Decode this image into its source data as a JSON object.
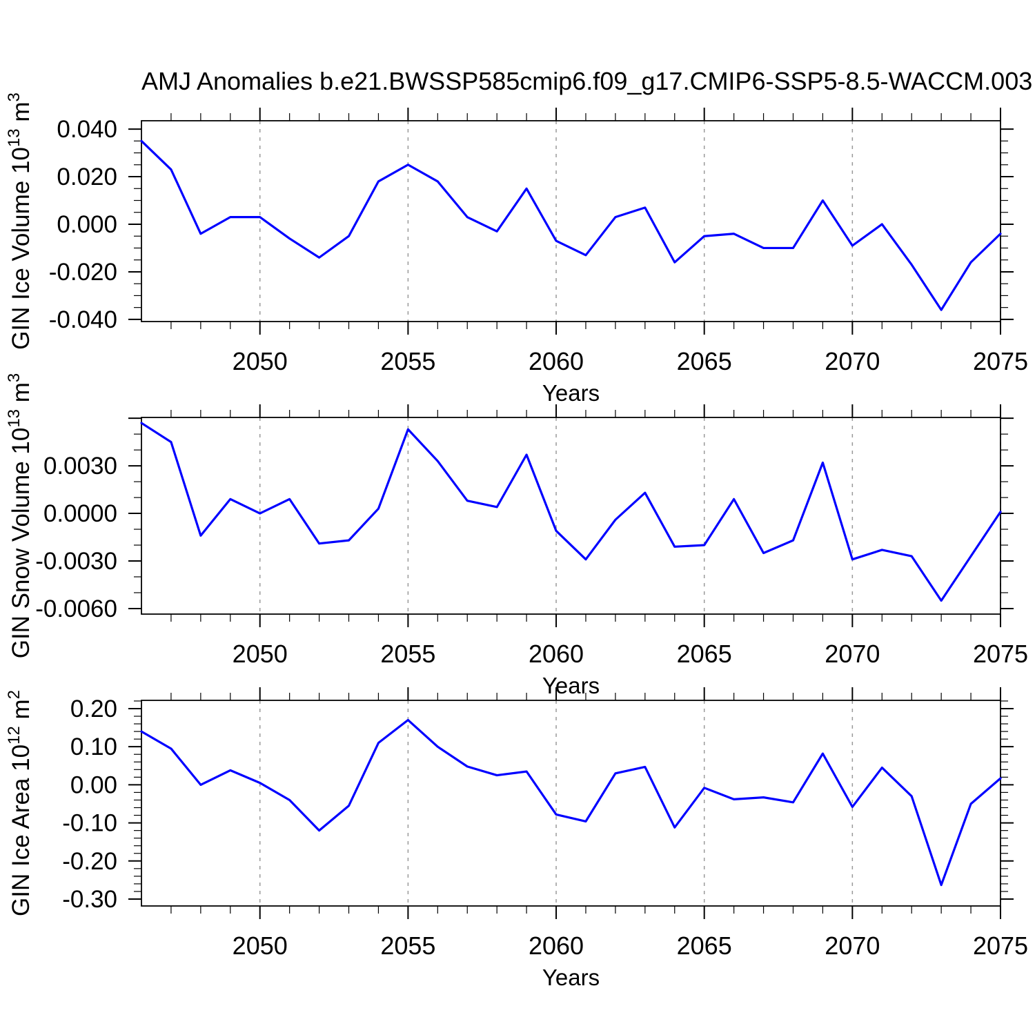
{
  "title": "AMJ Anomalies b.e21.BWSSP585cmip6.f09_g17.CMIP6-SSP5-8.5-WACCM.003",
  "line_color": "#0000ff",
  "grid_color": "#999999",
  "chart_data": [
    {
      "type": "line",
      "series_name": "GIN Ice Volume anomaly",
      "ylabel": "GIN Ice Volume 10^13 m^3",
      "ylabel_segments": [
        {
          "t": "GIN Ice Volume 10"
        },
        {
          "t": "13",
          "sup": true
        },
        {
          "t": " m"
        },
        {
          "t": "3",
          "sup": true
        }
      ],
      "xlabel": "Years",
      "x": [
        2046,
        2047,
        2048,
        2049,
        2050,
        2051,
        2052,
        2053,
        2054,
        2055,
        2056,
        2057,
        2058,
        2059,
        2060,
        2061,
        2062,
        2063,
        2064,
        2065,
        2066,
        2067,
        2068,
        2069,
        2070,
        2071,
        2072,
        2073,
        2074,
        2075
      ],
      "values": [
        0.035,
        0.023,
        -0.004,
        0.003,
        0.003,
        -0.006,
        -0.014,
        -0.005,
        0.018,
        0.025,
        0.018,
        0.003,
        -0.003,
        0.015,
        -0.007,
        -0.013,
        0.003,
        0.007,
        -0.016,
        -0.005,
        -0.004,
        -0.01,
        -0.01,
        0.01,
        -0.009,
        0.0,
        -0.017,
        -0.036,
        -0.016,
        -0.004
      ],
      "xlim": [
        2046,
        2075
      ],
      "ylim": [
        -0.0409,
        0.0435
      ],
      "xticks": {
        "values": [
          2050,
          2055,
          2060,
          2065,
          2070,
          2075
        ],
        "labels": [
          "2050",
          "2055",
          "2060",
          "2065",
          "2070",
          "2075"
        ]
      },
      "yticks": {
        "values": [
          0.04,
          0.02,
          0.0,
          -0.02,
          -0.04
        ],
        "labels": [
          "0.040",
          "0.020",
          "0.000",
          "-0.020",
          "-0.040"
        ]
      },
      "x_minor_step": 1,
      "y_minor_step": 0.005,
      "grid": "vertical-dashed-at-major-xticks",
      "line_color": "#0000ff"
    },
    {
      "type": "line",
      "series_name": "GIN Snow Volume anomaly",
      "ylabel": "GIN Snow Volume 10^13 m^3",
      "ylabel_segments": [
        {
          "t": "GIN Snow Volume 10"
        },
        {
          "t": "13",
          "sup": true
        },
        {
          "t": " m"
        },
        {
          "t": "3",
          "sup": true
        }
      ],
      "xlabel": "Years",
      "x": [
        2046,
        2047,
        2048,
        2049,
        2050,
        2051,
        2052,
        2053,
        2054,
        2055,
        2056,
        2057,
        2058,
        2059,
        2060,
        2061,
        2062,
        2063,
        2064,
        2065,
        2066,
        2067,
        2068,
        2069,
        2070,
        2071,
        2072,
        2073,
        2074,
        2075
      ],
      "values": [
        0.0057,
        0.0045,
        -0.0014,
        0.0009,
        0.0,
        0.0009,
        -0.0019,
        -0.0017,
        0.0003,
        0.0053,
        0.0033,
        0.0008,
        0.0004,
        0.0037,
        -0.0011,
        -0.0029,
        -0.0004,
        0.0013,
        -0.0021,
        -0.002,
        0.0009,
        -0.0025,
        -0.0017,
        0.0032,
        -0.0029,
        -0.0023,
        -0.0027,
        -0.0055,
        -0.0027,
        0.0001
      ],
      "xlim": [
        2046,
        2075
      ],
      "ylim": [
        -0.00635,
        0.00605
      ],
      "xticks": {
        "values": [
          2050,
          2055,
          2060,
          2065,
          2070,
          2075
        ],
        "labels": [
          "2050",
          "2055",
          "2060",
          "2065",
          "2070",
          "2075"
        ]
      },
      "yticks": {
        "values": [
          0.006,
          0.003,
          0.0,
          -0.003,
          -0.006
        ],
        "labels": [
          "",
          "0.0030",
          "0.0000",
          "-0.0030",
          "-0.0060"
        ]
      },
      "x_minor_step": 1,
      "y_minor_step": 0.001,
      "grid": "vertical-dashed-at-major-xticks",
      "line_color": "#0000ff"
    },
    {
      "type": "line",
      "series_name": "GIN Ice Area anomaly",
      "ylabel": "GIN Ice Area 10^12 m^2",
      "ylabel_segments": [
        {
          "t": "GIN Ice Area 10"
        },
        {
          "t": "12",
          "sup": true
        },
        {
          "t": " m"
        },
        {
          "t": "2",
          "sup": true
        }
      ],
      "xlabel": "Years",
      "x": [
        2046,
        2047,
        2048,
        2049,
        2050,
        2051,
        2052,
        2053,
        2054,
        2055,
        2056,
        2057,
        2058,
        2059,
        2060,
        2061,
        2062,
        2063,
        2064,
        2065,
        2066,
        2067,
        2068,
        2069,
        2070,
        2071,
        2072,
        2073,
        2074,
        2075
      ],
      "values": [
        0.14,
        0.095,
        0.0,
        0.038,
        0.005,
        -0.04,
        -0.12,
        -0.055,
        0.11,
        0.17,
        0.1,
        0.048,
        0.025,
        0.035,
        -0.078,
        -0.096,
        0.03,
        0.047,
        -0.112,
        -0.008,
        -0.038,
        -0.033,
        -0.046,
        0.082,
        -0.058,
        0.045,
        -0.03,
        -0.263,
        -0.05,
        0.017
      ],
      "xlim": [
        2046,
        2075
      ],
      "ylim": [
        -0.3181,
        0.2217
      ],
      "xticks": {
        "values": [
          2050,
          2055,
          2060,
          2065,
          2070,
          2075
        ],
        "labels": [
          "2050",
          "2055",
          "2060",
          "2065",
          "2070",
          "2075"
        ]
      },
      "yticks": {
        "values": [
          0.2,
          0.1,
          0.0,
          -0.1,
          -0.2,
          -0.3
        ],
        "labels": [
          "0.20",
          "0.10",
          "0.00",
          "-0.10",
          "-0.20",
          "-0.30"
        ]
      },
      "x_minor_step": 1,
      "y_minor_step": 0.02,
      "grid": "vertical-dashed-at-major-xticks",
      "line_color": "#0000ff"
    }
  ]
}
